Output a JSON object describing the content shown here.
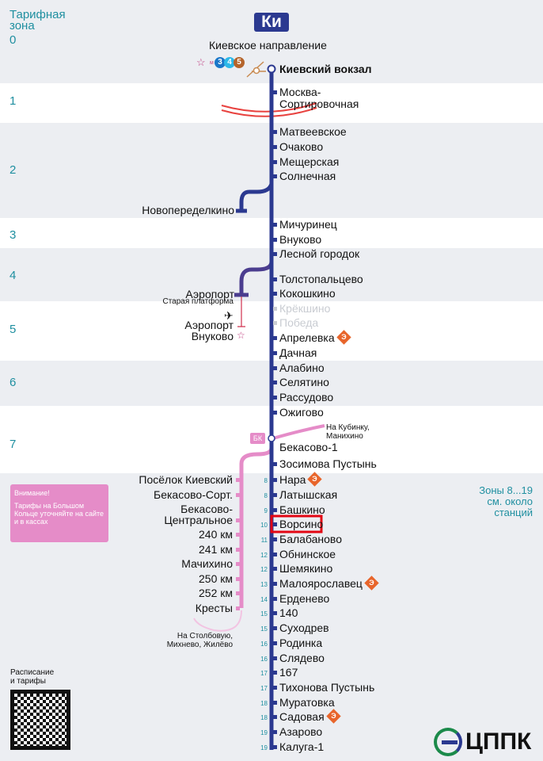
{
  "header": {
    "badge": "Ки",
    "direction": "Киевское направление",
    "zone_title": "Тарифная зона",
    "metro_lines": [
      "3",
      "4",
      "5"
    ],
    "metro_prefix": "м"
  },
  "zones": [
    "0",
    "1",
    "2",
    "3",
    "4",
    "5",
    "6",
    "7"
  ],
  "zones_note": "Зоны 8...19 см. около станций",
  "main_stations": [
    {
      "name": "Киевский вокзал",
      "bold": true
    },
    {
      "name": "Москва-\nСортировочная"
    },
    {
      "name": "Матвеевское"
    },
    {
      "name": "Очаково"
    },
    {
      "name": "Мещерская"
    },
    {
      "name": "Солнечная"
    },
    {
      "name": "Мичуринец"
    },
    {
      "name": "Внуково"
    },
    {
      "name": "Лесной городок"
    },
    {
      "name": "Толстопальцево"
    },
    {
      "name": "Кокошкино"
    },
    {
      "name": "Крёкшино",
      "closed": true
    },
    {
      "name": "Победа",
      "closed": true
    },
    {
      "name": "Апрелевка",
      "express": true
    },
    {
      "name": "Дачная"
    },
    {
      "name": "Алабино"
    },
    {
      "name": "Селятино"
    },
    {
      "name": "Рассудово"
    },
    {
      "name": "Ожигово"
    },
    {
      "name": "Бекасово-1"
    },
    {
      "name": "Зосимова Пустынь"
    },
    {
      "name": "Нара",
      "zone": "8",
      "express": true
    },
    {
      "name": "Латышская",
      "zone": "8"
    },
    {
      "name": "Башкино",
      "zone": "9"
    },
    {
      "name": "Ворсино",
      "zone": "10",
      "highlighted": true
    },
    {
      "name": "Балабаново",
      "zone": "11"
    },
    {
      "name": "Обнинское",
      "zone": "12"
    },
    {
      "name": "Шемякино",
      "zone": "12"
    },
    {
      "name": "Малоярославец",
      "zone": "13",
      "express": true
    },
    {
      "name": "Ерденево",
      "zone": "14"
    },
    {
      "name": "140",
      "zone": "15"
    },
    {
      "name": "Суходрев",
      "zone": "15"
    },
    {
      "name": "Родинка",
      "zone": "16"
    },
    {
      "name": "Слядево",
      "zone": "16"
    },
    {
      "name": "167",
      "zone": "17"
    },
    {
      "name": "Тихонова Пустынь",
      "zone": "17"
    },
    {
      "name": "Муратовка",
      "zone": "18"
    },
    {
      "name": "Садовая",
      "zone": "18",
      "express": true
    },
    {
      "name": "Азарово",
      "zone": "19"
    },
    {
      "name": "Калуга-1",
      "zone": "19"
    }
  ],
  "branch_stations": [
    "Новопеределкино",
    "Аэропорт",
    "Внуково"
  ],
  "airport": {
    "old_platform": "Старая платформа",
    "airport_vnukovo": "Аэропорт\nВнуково"
  },
  "pink_stations": [
    "Посёлок Киевский",
    "Бекасово-Сорт.",
    "Бекасово-\nЦентральное",
    "240 км",
    "241 км",
    "Мачихино",
    "250 км",
    "252 км",
    "Кресты"
  ],
  "bk_badge": "БК",
  "to_kubinka": "На Кубинку,\nМанихино",
  "to_stolbovaya": "На Столбовую,\nМихнево, Жилёво",
  "notice": {
    "title": "Внимание!",
    "text": "Тарифы на Большом Кольце уточняйте на сайте и в кассах"
  },
  "schedule": "Расписание\nи тарифы",
  "express_icon": "Э",
  "logo": "ЦППК",
  "colors": {
    "line": "#2b3990",
    "pink": "#e58cc8",
    "zone": "#1f8fa0",
    "express": "#e8652b",
    "highlight": "#e30613"
  }
}
